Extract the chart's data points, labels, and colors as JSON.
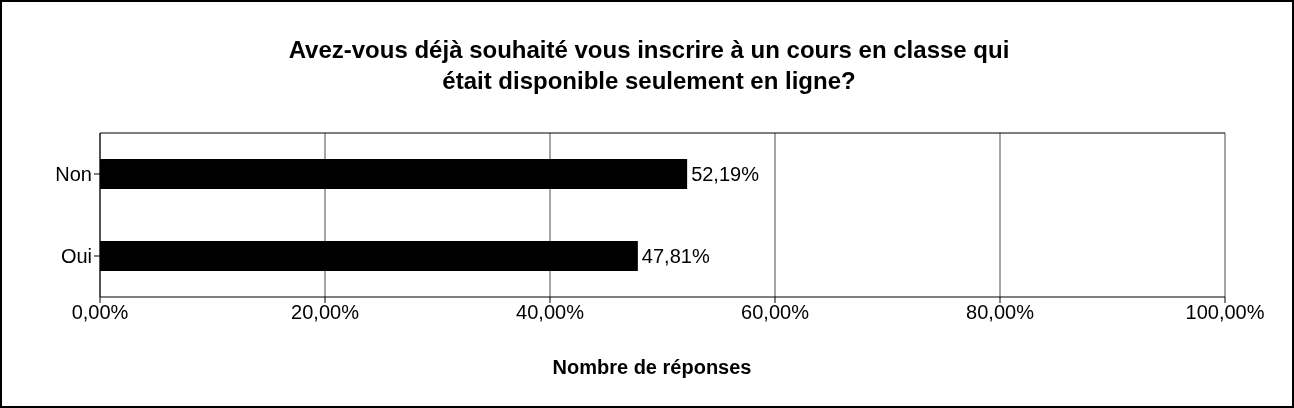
{
  "chart_data": {
    "type": "bar",
    "orientation": "horizontal",
    "title": "Avez-vous déjà souhaité vous inscrire à un cours en classe qui\nétait disponible seulement en ligne?",
    "xlabel": "Nombre de réponses",
    "categories": [
      "Non",
      "Oui"
    ],
    "values": [
      52.19,
      47.81
    ],
    "value_labels": [
      "52,19%",
      "47,81%"
    ],
    "color": "#000000",
    "xlim": [
      0,
      100
    ],
    "xticks": [
      {
        "value": 0,
        "label": "0,00%"
      },
      {
        "value": 20,
        "label": "20,00%"
      },
      {
        "value": 40,
        "label": "40,00%"
      },
      {
        "value": 60,
        "label": "60,00%"
      },
      {
        "value": 80,
        "label": "80,00%"
      },
      {
        "value": 100,
        "label": "100,00%"
      }
    ],
    "grid": "x"
  }
}
